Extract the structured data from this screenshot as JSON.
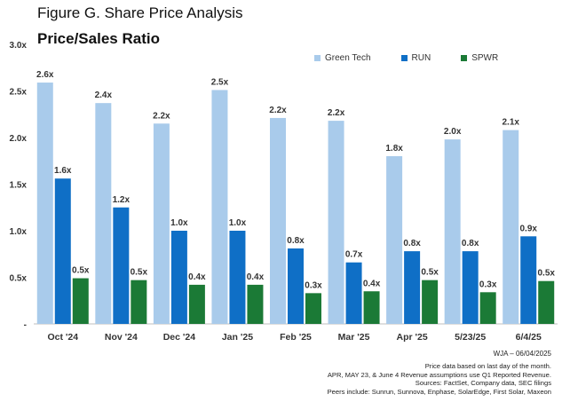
{
  "figure_caption": "Figure G. Share Price Analysis",
  "chart_data": {
    "type": "bar",
    "title": "Price/Sales Ratio",
    "categories": [
      "Oct '24",
      "Nov '24",
      "Dec '24",
      "Jan '25",
      "Feb '25",
      "Mar '25",
      "Apr '25",
      "5/23/25",
      "6/4/25"
    ],
    "series": [
      {
        "name": "Green Tech",
        "color": "#a9cbeb",
        "values": [
          2.6,
          2.4,
          2.2,
          2.5,
          2.2,
          2.2,
          1.8,
          2.0,
          2.1
        ],
        "data_labels": [
          "2.6x",
          "2.4x",
          "2.2x",
          "2.5x",
          "2.2x",
          "2.2x",
          "1.8x",
          "2.0x",
          "2.1x"
        ]
      },
      {
        "name": "RUN",
        "color": "#0f6fc6",
        "values": [
          1.6,
          1.2,
          1.0,
          1.0,
          0.8,
          0.7,
          0.8,
          0.8,
          0.9
        ],
        "data_labels": [
          "1.6x",
          "1.2x",
          "1.0x",
          "1.0x",
          "0.8x",
          "0.7x",
          "0.8x",
          "0.8x",
          "0.9x"
        ]
      },
      {
        "name": "SPWR",
        "color": "#1b7a36",
        "values": [
          0.5,
          0.5,
          0.4,
          0.4,
          0.3,
          0.4,
          0.5,
          0.3,
          0.5
        ],
        "data_labels": [
          "0.5x",
          "0.5x",
          "0.4x",
          "0.4x",
          "0.3x",
          "0.4x",
          "0.5x",
          "0.3x",
          "0.5x"
        ]
      }
    ],
    "bar_heights_exact": {
      "Green Tech": [
        2.59,
        2.37,
        2.15,
        2.51,
        2.21,
        2.18,
        1.8,
        1.98,
        2.08
      ],
      "RUN": [
        1.56,
        1.25,
        1.0,
        1.0,
        0.81,
        0.66,
        0.78,
        0.78,
        0.94
      ],
      "SPWR": [
        0.49,
        0.47,
        0.42,
        0.42,
        0.33,
        0.35,
        0.47,
        0.34,
        0.46
      ]
    },
    "yticks": [
      "-",
      "0.5x",
      "1.0x",
      "1.5x",
      "2.0x",
      "2.5x",
      "3.0x"
    ],
    "ylim": [
      0,
      3.0
    ],
    "legend_position": "top-right",
    "grid": false
  },
  "attribution": "WJA – 06/04/2025",
  "notes": [
    "Price data based on last day of the month.",
    "APR, MAY 23, & June 4 Revenue assumptions use Q1 Reported Revenue.",
    "Sources: FactSet, Company data, SEC filings",
    "Peers include: Sunrun, Sunnova, Enphase, SolarEdge, First Solar, Maxeon"
  ]
}
